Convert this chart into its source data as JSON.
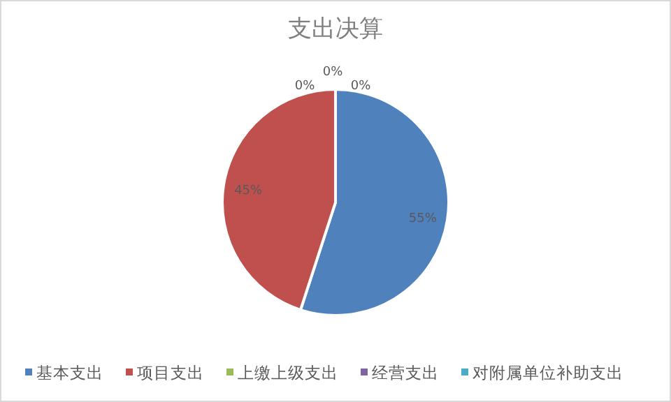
{
  "chart_data": {
    "type": "pie",
    "title": "支出决算",
    "categories": [
      "基本支出",
      "项目支出",
      "上缴上级支出",
      "经营支出",
      "对附属单位补助支出"
    ],
    "values": [
      55,
      45,
      0,
      0,
      0
    ],
    "colors": [
      "#4f81bd",
      "#c0504d",
      "#9bbb59",
      "#8064a2",
      "#4bacc6"
    ],
    "value_labels": [
      "55%",
      "45%",
      "0%",
      "0%",
      "0%"
    ],
    "legend": "bottom"
  }
}
